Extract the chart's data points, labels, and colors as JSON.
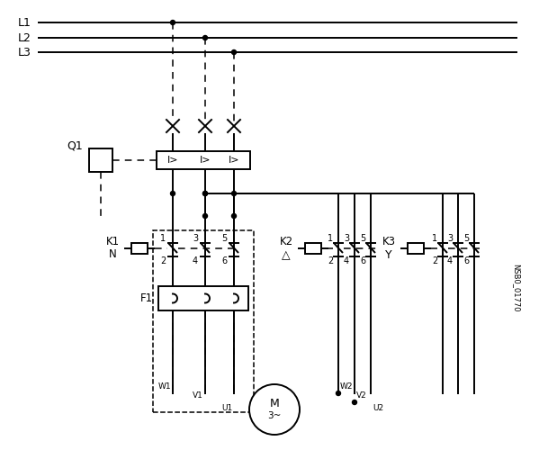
{
  "bg_color": "#ffffff",
  "line_color": "#000000",
  "fig_width": 5.99,
  "fig_height": 5.2,
  "label_L1": "L1",
  "label_L2": "L2",
  "label_L3": "L3",
  "label_Q1": "Q1",
  "label_K1": "K1",
  "label_N": "N",
  "label_K2": "K2",
  "label_delta": "△",
  "label_K3": "K3",
  "label_Y": "Y",
  "label_F1": "F1",
  "label_nsb": "NSB0_01770",
  "label_W1": "W1",
  "label_V1": "V1",
  "label_U1": "U1",
  "label_W2": "W2",
  "label_V2": "V2",
  "label_U2": "U2",
  "label_M": "M",
  "label_3ph": "3~",
  "label_I": "I>",
  "lw_main": 1.4,
  "lw_dash": 1.1,
  "dot_r": 2.5
}
